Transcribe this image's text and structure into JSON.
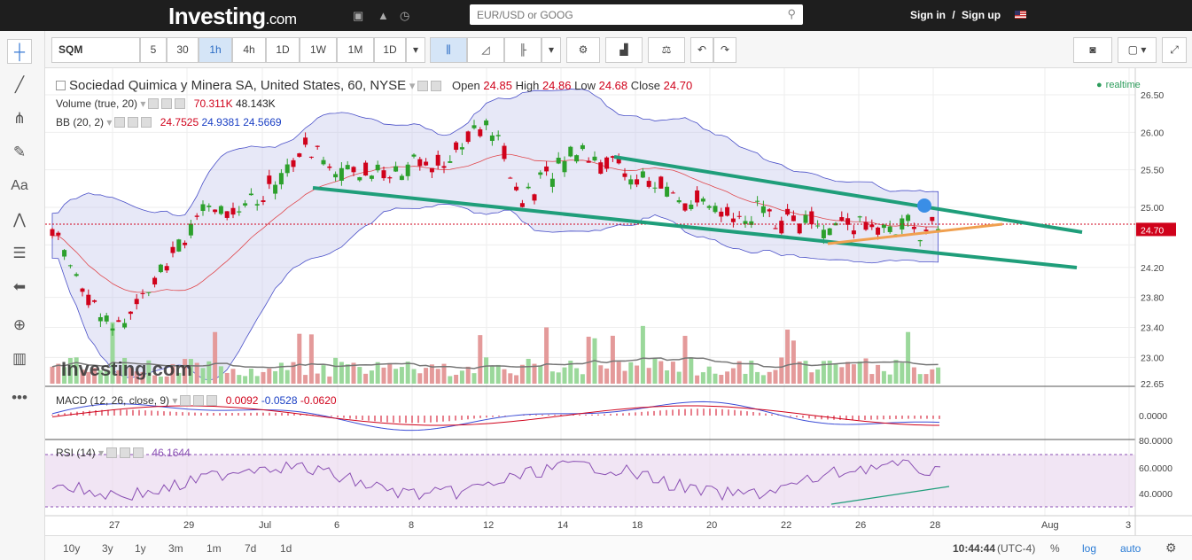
{
  "nav": {
    "logo_main": "Investing",
    "logo_suffix": ".com",
    "search_placeholder": "EUR/USD or GOOG",
    "sign_in": "Sign in",
    "sep": "/",
    "sign_up": "Sign up"
  },
  "toolbar": {
    "symbol": "SQM",
    "intervals": [
      "5",
      "30",
      "1h",
      "4h",
      "1D",
      "1W",
      "1M",
      "1D"
    ],
    "active_interval": "1h"
  },
  "legend": {
    "title": "Sociedad Quimica y Minera SA, United States, 60, NYSE",
    "open_label": "Open",
    "open": "24.85",
    "high_label": "High",
    "high": "24.86",
    "low_label": "Low",
    "low": "24.68",
    "close_label": "Close",
    "close": "24.70",
    "volume_label": "Volume (true, 20)",
    "volume_val1": "70.311K",
    "volume_val2": "48.143K",
    "bb_label": "BB (20, 2)",
    "bb_val1": "24.7525",
    "bb_val2": "24.9381",
    "bb_val3": "24.5669",
    "realtime": "realtime",
    "macd_label": "MACD (12, 26, close, 9)",
    "macd_val1": "0.0092",
    "macd_val2": "-0.0528",
    "macd_val3": "-0.0620",
    "rsi_label": "RSI (14)",
    "rsi_val": "46.1644"
  },
  "watermark": "Investing.com",
  "price_axis": [
    "26.50",
    "26.00",
    "25.50",
    "25.00",
    "24.70",
    "24.20",
    "23.80",
    "23.40",
    "23.00",
    "22.65"
  ],
  "macd_axis": [
    "0.0000"
  ],
  "rsi_axis": [
    "80.0000",
    "60.0000",
    "40.0000"
  ],
  "date_axis": [
    "27",
    "29",
    "Jul",
    "6",
    "8",
    "12",
    "14",
    "18",
    "20",
    "22",
    "26",
    "28",
    "Aug",
    "3"
  ],
  "ranges": [
    "10y",
    "3y",
    "1y",
    "3m",
    "1m",
    "7d",
    "1d"
  ],
  "footer": {
    "time": "10:44:44",
    "tz": "(UTC-4)",
    "pct": "%",
    "log": "log",
    "auto": "auto"
  },
  "colors": {
    "up": "#2ca02c",
    "down": "#d0021b",
    "trendline": "#1f9e7a",
    "support": "#f0a050",
    "band": "#b9bde8"
  },
  "icons": [
    "crosshair-icon",
    "trendline-icon",
    "fork-icon",
    "brush-icon",
    "text-icon",
    "pattern-icon",
    "measure-icon",
    "back-arrow-icon",
    "zoom-icon",
    "ruler-icon",
    "more-icon"
  ]
}
